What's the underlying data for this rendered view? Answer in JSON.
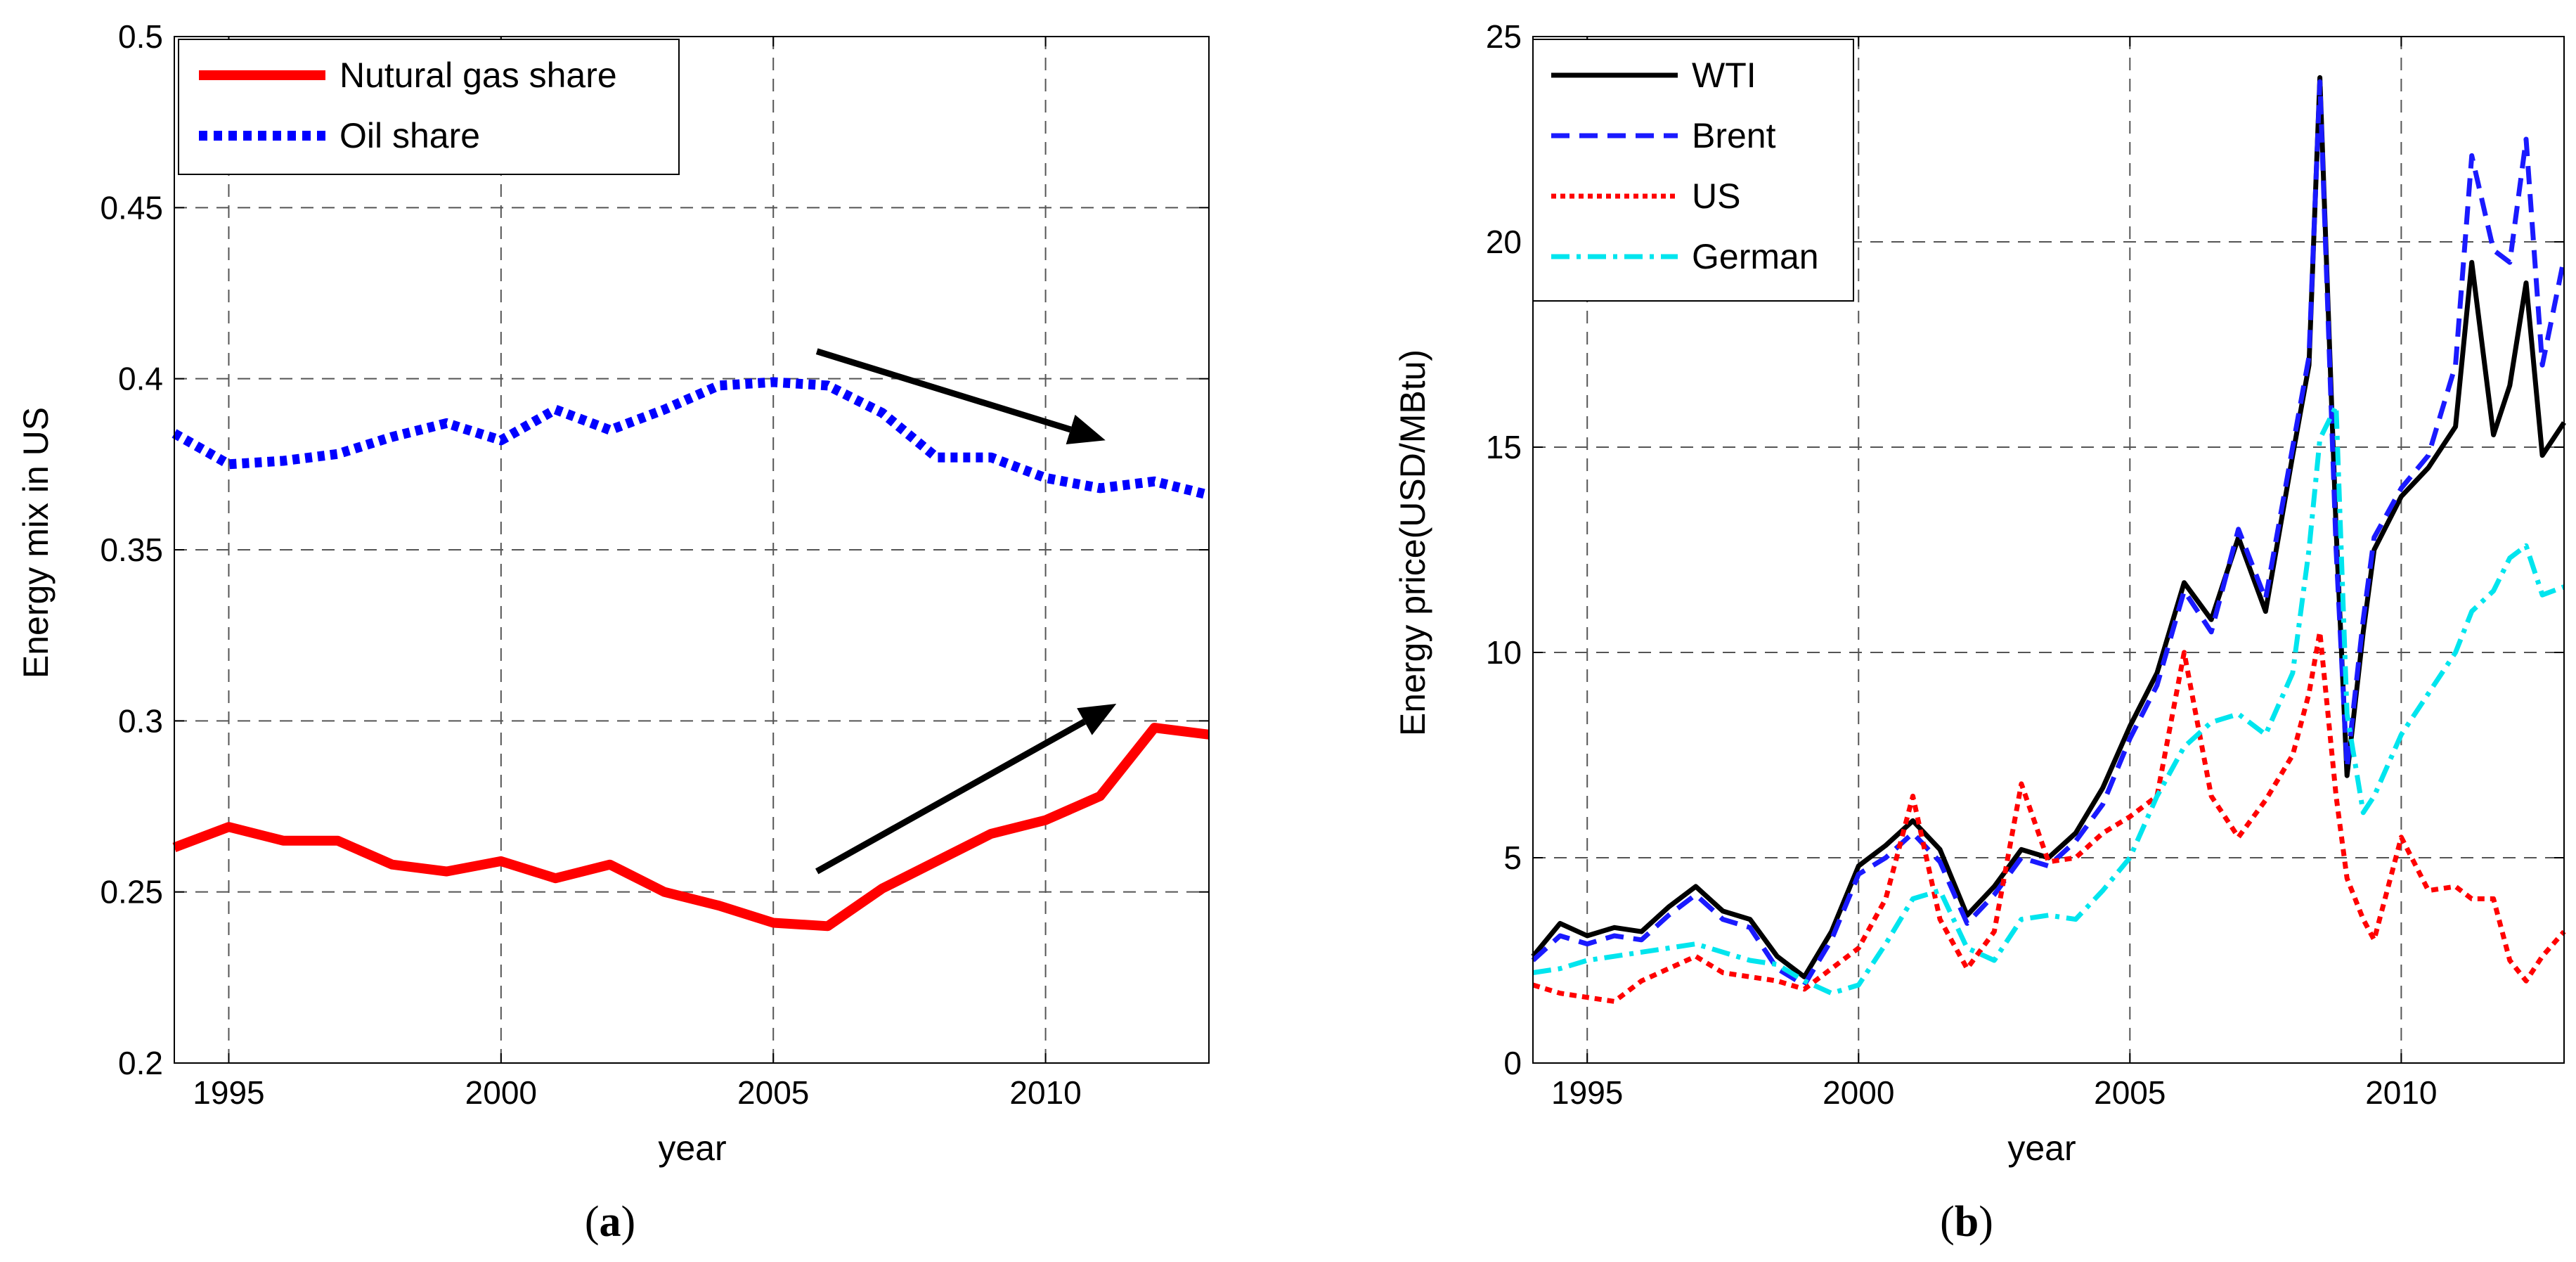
{
  "chart_data": [
    {
      "type": "line",
      "caption": {
        "open": "(",
        "letter": "a",
        "close": ")"
      },
      "xlabel": "year",
      "ylabel": "Energy mix in US",
      "xlim": [
        1994,
        2013
      ],
      "ylim": [
        0.2,
        0.5
      ],
      "xticks": [
        1995,
        2000,
        2005,
        2010
      ],
      "yticks": [
        0.2,
        0.25,
        0.3,
        0.35,
        0.4,
        0.45,
        0.5
      ],
      "grid": true,
      "legend_position": "top-left",
      "series": [
        {
          "name": "Nutural gas share",
          "color": "#ff0000",
          "style": "solid",
          "x": [
            1994,
            1995,
            1996,
            1997,
            1998,
            1999,
            2000,
            2001,
            2002,
            2003,
            2004,
            2005,
            2006,
            2007,
            2008,
            2009,
            2010,
            2011,
            2012,
            2013
          ],
          "y": [
            0.263,
            0.269,
            0.265,
            0.265,
            0.258,
            0.256,
            0.259,
            0.254,
            0.258,
            0.25,
            0.246,
            0.241,
            0.24,
            0.251,
            0.259,
            0.267,
            0.271,
            0.278,
            0.298,
            0.296
          ]
        },
        {
          "name": "Oil share",
          "color": "#0000ff",
          "style": "dotted",
          "x": [
            1994,
            1995,
            1996,
            1997,
            1998,
            1999,
            2000,
            2001,
            2002,
            2003,
            2004,
            2005,
            2006,
            2007,
            2008,
            2009,
            2010,
            2011,
            2012,
            2013
          ],
          "y": [
            0.384,
            0.375,
            0.376,
            0.378,
            0.383,
            0.387,
            0.382,
            0.391,
            0.385,
            0.391,
            0.398,
            0.399,
            0.398,
            0.39,
            0.377,
            0.377,
            0.371,
            0.368,
            0.37,
            0.366
          ]
        }
      ],
      "annotations": [
        {
          "type": "arrow",
          "from": [
            2005.8,
            0.408
          ],
          "to": [
            2011.1,
            0.382
          ]
        },
        {
          "type": "arrow",
          "from": [
            2005.8,
            0.256
          ],
          "to": [
            2011.3,
            0.305
          ]
        }
      ]
    },
    {
      "type": "line",
      "caption": {
        "open": "(",
        "letter": "b",
        "close": ")"
      },
      "xlabel": "year",
      "ylabel": "Energy price(USD/MBtu)",
      "xlim": [
        1994,
        2013
      ],
      "ylim": [
        0,
        25
      ],
      "xticks": [
        1995,
        2000,
        2005,
        2010
      ],
      "yticks": [
        0,
        5,
        10,
        15,
        20,
        25
      ],
      "grid": true,
      "legend_position": "top-left",
      "series": [
        {
          "name": "WTI",
          "color": "#000000",
          "style": "solid",
          "x": [
            1994,
            1994.5,
            1995,
            1995.5,
            1996,
            1996.5,
            1997,
            1997.5,
            1998,
            1998.5,
            1999,
            1999.5,
            2000,
            2000.5,
            2001,
            2001.5,
            2002,
            2002.5,
            2003,
            2003.5,
            2004,
            2004.5,
            2005,
            2005.5,
            2006,
            2006.5,
            2007,
            2007.5,
            2008,
            2008.3,
            2008.5,
            2008.8,
            2009,
            2009.3,
            2009.5,
            2010,
            2010.5,
            2011,
            2011.3,
            2011.7,
            2012,
            2012.3,
            2012.6,
            2013
          ],
          "y": [
            2.6,
            3.4,
            3.1,
            3.3,
            3.2,
            3.8,
            4.3,
            3.7,
            3.5,
            2.6,
            2.1,
            3.2,
            4.8,
            5.3,
            5.9,
            5.2,
            3.6,
            4.3,
            5.2,
            5.0,
            5.6,
            6.7,
            8.2,
            9.5,
            11.7,
            10.8,
            12.8,
            11.0,
            14.8,
            17.0,
            24.0,
            13.0,
            7.0,
            10.5,
            12.5,
            13.8,
            14.5,
            15.5,
            19.5,
            15.3,
            16.5,
            19.0,
            14.8,
            15.6
          ]
        },
        {
          "name": "Brent",
          "color": "#1a1aff",
          "style": "dashed",
          "x": [
            1994,
            1994.5,
            1995,
            1995.5,
            1996,
            1996.5,
            1997,
            1997.5,
            1998,
            1998.5,
            1999,
            1999.5,
            2000,
            2000.5,
            2001,
            2001.5,
            2002,
            2002.5,
            2003,
            2003.5,
            2004,
            2004.5,
            2005,
            2005.5,
            2006,
            2006.5,
            2007,
            2007.5,
            2008,
            2008.3,
            2008.5,
            2008.8,
            2009,
            2009.3,
            2009.5,
            2010,
            2010.5,
            2011,
            2011.3,
            2011.7,
            2012,
            2012.3,
            2012.6,
            2013
          ],
          "y": [
            2.5,
            3.1,
            2.9,
            3.1,
            3.0,
            3.6,
            4.1,
            3.5,
            3.3,
            2.3,
            1.9,
            3.0,
            4.6,
            5.0,
            5.6,
            4.9,
            3.4,
            4.1,
            5.0,
            4.8,
            5.4,
            6.3,
            7.9,
            9.2,
            11.5,
            10.5,
            13.0,
            11.3,
            15.0,
            17.2,
            23.9,
            12.5,
            7.2,
            10.8,
            12.8,
            14.0,
            14.8,
            17.0,
            22.1,
            19.8,
            19.5,
            22.5,
            17.0,
            19.6
          ]
        },
        {
          "name": "US",
          "color": "#ff0000",
          "style": "dotted",
          "x": [
            1994,
            1994.5,
            1995,
            1995.5,
            1996,
            1996.5,
            1997,
            1997.5,
            1998,
            1998.5,
            1999,
            1999.5,
            2000,
            2000.5,
            2001,
            2001.5,
            2002,
            2002.5,
            2003,
            2003.5,
            2004,
            2004.5,
            2005,
            2005.5,
            2006,
            2006.5,
            2007,
            2007.5,
            2008,
            2008.3,
            2008.5,
            2008.8,
            2009,
            2009.3,
            2009.5,
            2010,
            2010.5,
            2011,
            2011.3,
            2011.7,
            2012,
            2012.3,
            2012.6,
            2013
          ],
          "y": [
            1.9,
            1.7,
            1.6,
            1.5,
            2.0,
            2.3,
            2.6,
            2.2,
            2.1,
            2.0,
            1.8,
            2.3,
            2.8,
            4.0,
            6.5,
            3.5,
            2.3,
            3.2,
            6.8,
            4.9,
            5.0,
            5.6,
            6.0,
            6.5,
            10.0,
            6.5,
            5.5,
            6.4,
            7.5,
            9.0,
            10.5,
            6.5,
            4.5,
            3.5,
            3.0,
            5.5,
            4.2,
            4.3,
            4.0,
            4.0,
            2.5,
            2.0,
            2.6,
            3.2
          ]
        },
        {
          "name": "German",
          "color": "#00e5ee",
          "style": "dashdot",
          "x": [
            1994,
            1994.5,
            1995,
            1995.5,
            1996,
            1996.5,
            1997,
            1997.5,
            1998,
            1998.5,
            1999,
            1999.5,
            2000,
            2000.5,
            2001,
            2001.5,
            2002,
            2002.5,
            2003,
            2003.5,
            2004,
            2004.5,
            2005,
            2005.5,
            2006,
            2006.5,
            2007,
            2007.5,
            2008,
            2008.3,
            2008.5,
            2008.8,
            2009,
            2009.3,
            2009.5,
            2010,
            2010.5,
            2011,
            2011.3,
            2011.7,
            2012,
            2012.3,
            2012.6,
            2013
          ],
          "y": [
            2.2,
            2.3,
            2.5,
            2.6,
            2.7,
            2.8,
            2.9,
            2.7,
            2.5,
            2.4,
            2.0,
            1.7,
            1.9,
            2.9,
            4.0,
            4.2,
            2.8,
            2.5,
            3.5,
            3.6,
            3.5,
            4.2,
            5.0,
            6.5,
            7.7,
            8.3,
            8.5,
            8.0,
            9.5,
            12.5,
            15.2,
            16.0,
            8.5,
            6.1,
            6.5,
            8.0,
            9.0,
            10.0,
            11.0,
            11.5,
            12.3,
            12.6,
            11.4,
            11.6
          ]
        }
      ]
    }
  ]
}
